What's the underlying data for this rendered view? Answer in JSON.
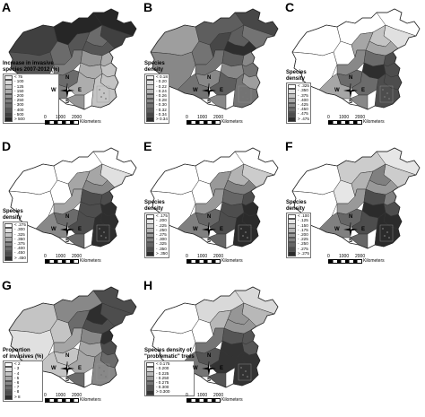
{
  "panels": [
    {
      "letter": "A",
      "legend_title": "Increase in invasive\nspecies 2007-2012 (%)",
      "legend_items": [
        "< 75",
        "- 100",
        "- 125",
        "- 150",
        "- 200",
        "- 250",
        "- 300",
        "- 400",
        "- 500",
        "> 500"
      ],
      "ramp": [
        "#f2f2f2",
        "#d9d9d9",
        "#c4c4c4",
        "#adadad",
        "#969696",
        "#808080",
        "#6b6b6b",
        "#555555",
        "#404040",
        "#262626"
      ]
    },
    {
      "letter": "B",
      "legend_title": "Species\ndensity",
      "legend_items": [
        "< 0.18",
        "- 0.20",
        "- 0.22",
        "- 0.24",
        "- 0.26",
        "- 0.28",
        "- 0.30",
        "- 0.32",
        "- 0.34",
        "> 0.34"
      ],
      "ramp": [
        "#f2f2f2",
        "#dcdcdc",
        "#c8c8c8",
        "#b3b3b3",
        "#9e9e9e",
        "#888888",
        "#737373",
        "#5e5e5e",
        "#474747",
        "#2e2e2e"
      ]
    },
    {
      "letter": "C",
      "legend_title": "Species\ndensity",
      "legend_items": [
        "< .325",
        "- .350",
        "- .375",
        "- .400",
        "- .425",
        "- .450",
        "- .475",
        "> .475"
      ],
      "ramp": [
        "#ffffff",
        "#e0e0e0",
        "#c4c4c4",
        "#a6a6a6",
        "#888888",
        "#6b6b6b",
        "#4d4d4d",
        "#2e2e2e"
      ]
    },
    {
      "letter": "D",
      "legend_title": "Species\ndensity",
      "legend_items": [
        "< .275",
        "- .300",
        "- .325",
        "- .350",
        "- .375",
        "- .400",
        "- .450",
        "> .450"
      ],
      "ramp": [
        "#ffffff",
        "#e0e0e0",
        "#c4c4c4",
        "#a6a6a6",
        "#888888",
        "#6b6b6b",
        "#4d4d4d",
        "#2e2e2e"
      ]
    },
    {
      "letter": "E",
      "legend_title": "Species\ndensity",
      "legend_items": [
        "< .175",
        "- .200",
        "- .225",
        "- .250",
        "- .275",
        "- .300",
        "- .325",
        "- .350",
        "> .350"
      ],
      "ramp": [
        "#ffffff",
        "#e6e6e6",
        "#cccccc",
        "#b3b3b3",
        "#999999",
        "#808080",
        "#666666",
        "#4d4d4d",
        "#2b2b2b"
      ]
    },
    {
      "letter": "F",
      "legend_title": "Species\ndensity",
      "legend_items": [
        "< .100",
        "- .125",
        "- .150",
        "- .175",
        "- .200",
        "- .225",
        "- .250",
        "- .275",
        "> .275"
      ],
      "ramp": [
        "#ffffff",
        "#e6e6e6",
        "#cccccc",
        "#b3b3b3",
        "#999999",
        "#808080",
        "#666666",
        "#4d4d4d",
        "#2b2b2b"
      ]
    },
    {
      "letter": "G",
      "legend_title": "Proportion\nof invasives (%)",
      "legend_items": [
        "< 2",
        "- 3",
        "- 4",
        "- 5",
        "- 6",
        "- 7",
        "- 8",
        "> 8"
      ],
      "ramp": [
        "#ffffff",
        "#e0e0e0",
        "#c4c4c4",
        "#a6a6a6",
        "#888888",
        "#6b6b6b",
        "#4d4d4d",
        "#2e2e2e"
      ]
    },
    {
      "letter": "H",
      "legend_title": "Species density of\n\"problematic\" trees",
      "legend_items": [
        "< 0.175",
        "- 0.200",
        "- 0.225",
        "- 0.250",
        "- 0.275",
        "- 0.300",
        "> 0.300"
      ],
      "ramp": [
        "#ffffff",
        "#d9d9d9",
        "#b8b8b8",
        "#969696",
        "#757575",
        "#555555",
        "#333333"
      ]
    }
  ],
  "compass": {
    "n": "N",
    "s": "S",
    "e": "E",
    "w": "W"
  },
  "scale": {
    "label_0": "0",
    "label_1000": "1000",
    "label_2000": "2000",
    "unit": "Kilometers"
  }
}
